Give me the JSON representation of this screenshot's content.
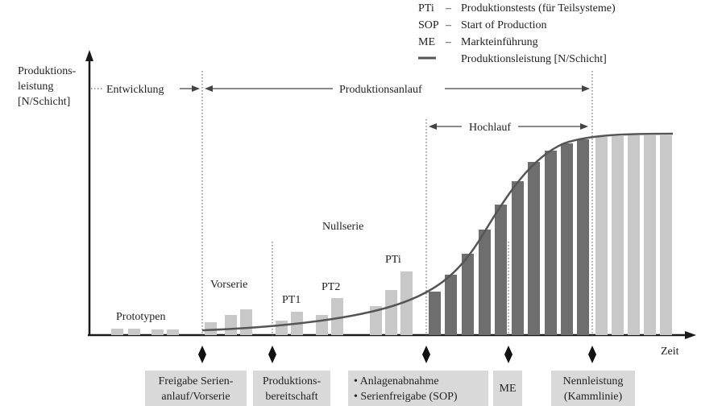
{
  "legend": [
    {
      "abbr": "PTi",
      "dash": "–",
      "text": "Produktionstests (für Teilsysteme)"
    },
    {
      "abbr": "SOP",
      "dash": "–",
      "text": "Start of Production"
    },
    {
      "abbr": "ME",
      "dash": "–",
      "text": "Markteinführung"
    },
    {
      "abbr": "",
      "dash": "",
      "text": "Produktionsleistung [N/Schicht]"
    }
  ],
  "axis": {
    "y_label_lines": [
      "Produktions-",
      "leistung",
      "[N/Schicht]"
    ],
    "x_label": "Zeit"
  },
  "phases": {
    "entwicklung": "Entwicklung",
    "produktionsanlauf": "Produktionsanlauf",
    "hochlauf": "Hochlauf"
  },
  "stage_labels": {
    "prototypen": "Prototypen",
    "vorserie": "Vorserie",
    "pt1": "PT1",
    "pt2": "PT2",
    "nullserie": "Nullserie",
    "pti": "PTi"
  },
  "milestones": [
    {
      "lines": [
        "Freigabe Serien-",
        "anlauf/Vorserie"
      ]
    },
    {
      "lines": [
        "Produktions-",
        "bereitschaft"
      ]
    },
    {
      "lines": [
        "• Anlagenabnahme",
        "• Serienfreigabe (SOP)"
      ]
    },
    {
      "lines": [
        "ME"
      ]
    },
    {
      "lines": [
        "Nennleistung",
        "(Kammlinie)"
      ]
    }
  ],
  "colors": {
    "light_bar": "#c8c8c8",
    "dark_bar": "#6e6e6e",
    "axis": "#1a1a1a",
    "curve": "#555555",
    "milestone_box": "#d9d9d9"
  }
}
